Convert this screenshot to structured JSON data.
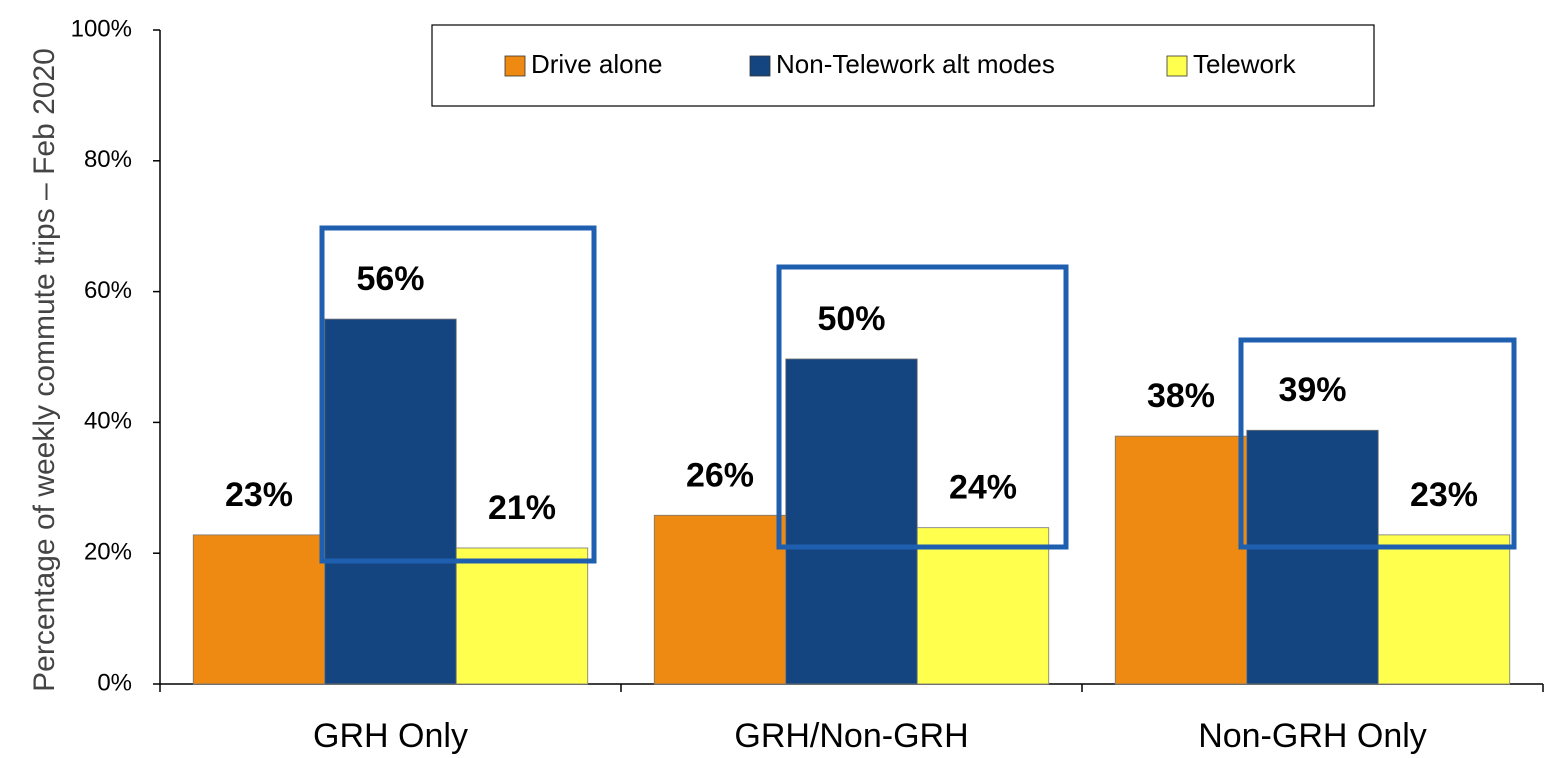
{
  "chart_data": {
    "type": "bar",
    "y_label": "Percentage of weekly commute trips – Feb 2020",
    "categories": [
      "GRH Only",
      "GRH/Non-GRH",
      "Non-GRH Only"
    ],
    "series": [
      {
        "name": "Drive alone",
        "color": "#ee8a12",
        "values": [
          22.8,
          25.8,
          37.9
        ],
        "value_labels": [
          "23%",
          "26%",
          "38%"
        ]
      },
      {
        "name": "Non-Telework alt modes",
        "color": "#154580",
        "values": [
          55.8,
          49.7,
          38.8
        ],
        "value_labels": [
          "56%",
          "50%",
          "39%"
        ]
      },
      {
        "name": "Telework",
        "color": "#ffff4d",
        "values": [
          20.8,
          23.9,
          22.8
        ],
        "value_labels": [
          "21%",
          "24%",
          "23%"
        ]
      }
    ],
    "ylim": [
      0,
      100
    ],
    "yticks": [
      {
        "value": 0,
        "label": "0%"
      },
      {
        "value": 20,
        "label": "20%"
      },
      {
        "value": 40,
        "label": "40%"
      },
      {
        "value": 60,
        "label": "60%"
      },
      {
        "value": 80,
        "label": "80%"
      },
      {
        "value": 100,
        "label": "100%"
      }
    ],
    "legend": "top"
  }
}
